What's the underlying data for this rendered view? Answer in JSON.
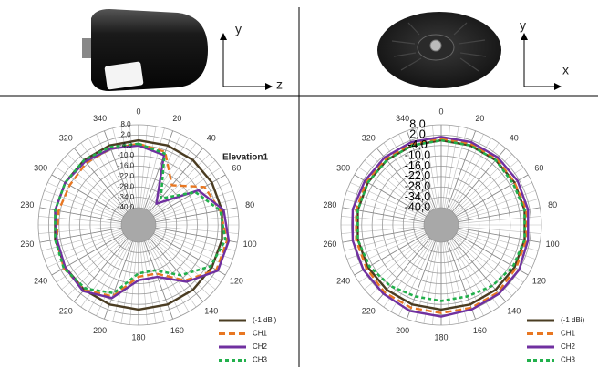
{
  "photos": [
    {
      "axis_labels": {
        "vertical": "y",
        "horizontal": "z"
      }
    },
    {
      "axis_labels": {
        "vertical": "y",
        "horizontal": "x"
      }
    }
  ],
  "chart_data": [
    {
      "type": "polar",
      "annotation": "Elevation1",
      "legend": "lower right",
      "theta": [
        0,
        20,
        40,
        60,
        80,
        100,
        120,
        140,
        160,
        180,
        200,
        220,
        240,
        260,
        280,
        300,
        320,
        340
      ],
      "thetaticks": [
        0,
        20,
        40,
        60,
        80,
        100,
        120,
        140,
        160,
        180,
        200,
        220,
        240,
        260,
        280,
        300,
        320,
        340
      ],
      "rlim": [
        -50,
        8
      ],
      "rticks": [
        {
          "value": 8,
          "label": "8,0"
        },
        {
          "value": 2,
          "label": "2,0"
        },
        {
          "value": -4,
          "label": "-4,0"
        },
        {
          "value": -10,
          "label": "-10,0"
        },
        {
          "value": -16,
          "label": "-16,0"
        },
        {
          "value": -22,
          "label": "-22,0"
        },
        {
          "value": -28,
          "label": "-28,0"
        },
        {
          "value": -34,
          "label": "-34,0"
        },
        {
          "value": -40,
          "label": "-40,0"
        }
      ],
      "series": [
        {
          "name": "(-1 dBi)",
          "color": "#4a3c22",
          "style": "solid",
          "values": [
            -1,
            -1,
            -1,
            -1,
            -1,
            -1,
            -1,
            -1,
            -1,
            -1,
            -1,
            -1,
            -1,
            -1,
            -1,
            -1,
            -1,
            -1
          ]
        },
        {
          "name": "CH1",
          "color": "#e87722",
          "style": "dashed",
          "values": [
            -3,
            -5,
            -20,
            -6,
            -2,
            2,
            2,
            -8,
            -20,
            -20,
            -6,
            -1,
            0,
            -2,
            -3,
            -4,
            -3,
            -3
          ]
        },
        {
          "name": "CH2",
          "color": "#7030a0",
          "style": "solid",
          "values": [
            -4,
            -7,
            -34,
            -10,
            0,
            3,
            3,
            -7,
            -18,
            -18,
            -5,
            0,
            -1,
            -2,
            -1,
            -1,
            -2,
            -3
          ]
        },
        {
          "name": "CH3",
          "color": "#22b04c",
          "style": "dotted",
          "values": [
            -3,
            -6,
            -30,
            -12,
            -2,
            1,
            -2,
            -12,
            -22,
            -22,
            -8,
            -2,
            0,
            -1,
            -1,
            -1,
            -1,
            -2
          ]
        }
      ]
    },
    {
      "type": "polar",
      "legend": "lower right",
      "theta": [
        0,
        20,
        40,
        60,
        80,
        100,
        120,
        140,
        160,
        180,
        200,
        220,
        240,
        260,
        280,
        300,
        320,
        340
      ],
      "thetaticks": [
        0,
        20,
        40,
        60,
        80,
        100,
        120,
        140,
        160,
        180,
        200,
        220,
        240,
        260,
        280,
        300,
        320,
        340
      ],
      "rlim": [
        -50,
        8
      ],
      "rticks": [
        {
          "value": 8,
          "label": "8,0"
        },
        {
          "value": 2,
          "label": "2,0"
        },
        {
          "value": -4,
          "label": "-4,0"
        },
        {
          "value": -10,
          "label": "-10,0"
        },
        {
          "value": -16,
          "label": "-16,0"
        },
        {
          "value": -22,
          "label": "-22,0"
        },
        {
          "value": -28,
          "label": "-28,0"
        },
        {
          "value": -34,
          "label": "-34,0"
        },
        {
          "value": -40,
          "label": "-40,0"
        }
      ],
      "series": [
        {
          "name": "(-1 dBi)",
          "color": "#4a3c22",
          "style": "solid",
          "values": [
            -1,
            -1,
            -1,
            -1,
            -1,
            -1,
            -1,
            -1,
            -1,
            -1,
            -1,
            -1,
            -1,
            -1,
            -1,
            -1,
            -1,
            -1
          ]
        },
        {
          "name": "CH1",
          "color": "#e87722",
          "style": "dashed",
          "values": [
            0,
            0,
            0,
            -1,
            0,
            0,
            0,
            1,
            1,
            1,
            1,
            1,
            0,
            0,
            0,
            0,
            0,
            0
          ]
        },
        {
          "name": "CH2",
          "color": "#7030a0",
          "style": "solid",
          "values": [
            1,
            1,
            1,
            1,
            1,
            1,
            2,
            2,
            2,
            3,
            3,
            2,
            2,
            2,
            2,
            1,
            1,
            1
          ]
        },
        {
          "name": "CH3",
          "color": "#22b04c",
          "style": "dotted",
          "values": [
            -1,
            -1,
            -1,
            -2,
            -1,
            -1,
            -2,
            -4,
            -6,
            -6,
            -6,
            -4,
            -2,
            -1,
            -1,
            -1,
            -1,
            -1
          ]
        }
      ]
    }
  ]
}
